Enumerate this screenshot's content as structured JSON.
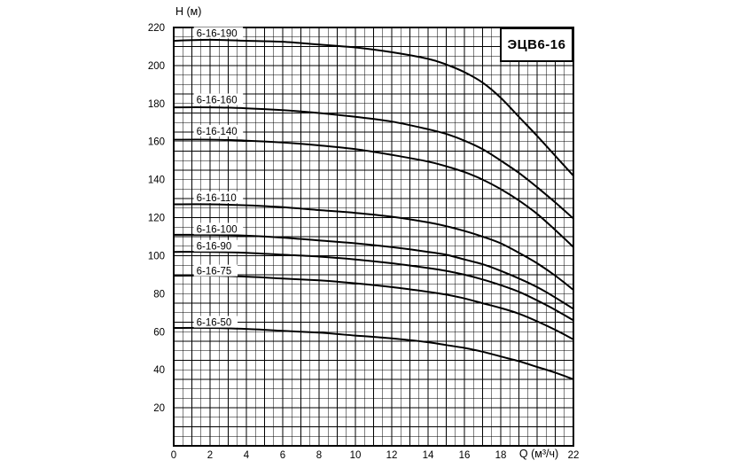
{
  "chart_data": {
    "type": "line",
    "title": "ЭЦВ6-16",
    "xlabel": "Q (м³/ч)",
    "ylabel": "H (м)",
    "xlim": [
      0,
      22
    ],
    "ylim": [
      0,
      220
    ],
    "x_ticks": [
      0,
      2,
      4,
      6,
      8,
      10,
      12,
      14,
      16,
      18,
      22
    ],
    "x_label_position": 20,
    "y_ticks": [
      20,
      40,
      60,
      80,
      100,
      120,
      140,
      160,
      180,
      200,
      220
    ],
    "grid": {
      "on": true,
      "x_minor_step": 0.5,
      "y_minor_step": 5
    },
    "legend_position": "labels-on-curves",
    "series": [
      {
        "name": "6-16-190",
        "label_x": 1.25,
        "label_y": 217,
        "points": [
          [
            0,
            213
          ],
          [
            2,
            213.5
          ],
          [
            4,
            213
          ],
          [
            6,
            212.5
          ],
          [
            8,
            211
          ],
          [
            10,
            209.5
          ],
          [
            12,
            207
          ],
          [
            14,
            203.5
          ],
          [
            15,
            200.5
          ],
          [
            16,
            196.5
          ],
          [
            17,
            191
          ],
          [
            18,
            183
          ],
          [
            19,
            173
          ],
          [
            20,
            163
          ],
          [
            21,
            152.5
          ],
          [
            22,
            142
          ]
        ]
      },
      {
        "name": "6-16-160",
        "label_x": 1.25,
        "label_y": 182,
        "points": [
          [
            0,
            178
          ],
          [
            2,
            178
          ],
          [
            4,
            177.5
          ],
          [
            6,
            176.5
          ],
          [
            8,
            175
          ],
          [
            10,
            173
          ],
          [
            12,
            170.5
          ],
          [
            14,
            166.5
          ],
          [
            15,
            164
          ],
          [
            16,
            160.5
          ],
          [
            17,
            156
          ],
          [
            18,
            150
          ],
          [
            19,
            143.5
          ],
          [
            20,
            136
          ],
          [
            21,
            128
          ],
          [
            22,
            119.5
          ]
        ]
      },
      {
        "name": "6-16-140",
        "label_x": 1.25,
        "label_y": 165.5,
        "points": [
          [
            0,
            161
          ],
          [
            2,
            161
          ],
          [
            4,
            160.5
          ],
          [
            6,
            159.5
          ],
          [
            8,
            158
          ],
          [
            10,
            156
          ],
          [
            12,
            153
          ],
          [
            14,
            149.5
          ],
          [
            15,
            147
          ],
          [
            16,
            144
          ],
          [
            17,
            140
          ],
          [
            18,
            135
          ],
          [
            19,
            129
          ],
          [
            20,
            122
          ],
          [
            21,
            113.5
          ],
          [
            22,
            104.5
          ]
        ]
      },
      {
        "name": "6-16-110",
        "label_x": 1.25,
        "label_y": 130.5,
        "points": [
          [
            0,
            127
          ],
          [
            2,
            127
          ],
          [
            4,
            126.5
          ],
          [
            6,
            125.5
          ],
          [
            8,
            124
          ],
          [
            10,
            122.5
          ],
          [
            12,
            120.5
          ],
          [
            14,
            117.5
          ],
          [
            15,
            115.5
          ],
          [
            16,
            113
          ],
          [
            17,
            110
          ],
          [
            18,
            106.5
          ],
          [
            19,
            101.5
          ],
          [
            20,
            96
          ],
          [
            21,
            89.5
          ],
          [
            22,
            82
          ]
        ]
      },
      {
        "name": "6-16-100",
        "label_x": 1.25,
        "label_y": 114,
        "points": [
          [
            0,
            111
          ],
          [
            2,
            111
          ],
          [
            4,
            110.5
          ],
          [
            6,
            109.5
          ],
          [
            8,
            108
          ],
          [
            10,
            106.5
          ],
          [
            12,
            104.5
          ],
          [
            14,
            102
          ],
          [
            15,
            100.5
          ],
          [
            16,
            98
          ],
          [
            17,
            95.5
          ],
          [
            18,
            92
          ],
          [
            19,
            88
          ],
          [
            20,
            83.5
          ],
          [
            21,
            78
          ],
          [
            22,
            72
          ]
        ]
      },
      {
        "name": "6-16-90",
        "label_x": 1.25,
        "label_y": 105,
        "points": [
          [
            0,
            102
          ],
          [
            2,
            102
          ],
          [
            4,
            101.5
          ],
          [
            6,
            100.5
          ],
          [
            8,
            99.5
          ],
          [
            10,
            98
          ],
          [
            12,
            96
          ],
          [
            14,
            93.5
          ],
          [
            15,
            92
          ],
          [
            16,
            90
          ],
          [
            17,
            87.5
          ],
          [
            18,
            84.5
          ],
          [
            19,
            81
          ],
          [
            20,
            76.5
          ],
          [
            21,
            71.5
          ],
          [
            22,
            66
          ]
        ]
      },
      {
        "name": "6-16-75",
        "label_x": 1.25,
        "label_y": 92,
        "points": [
          [
            0,
            89.5
          ],
          [
            2,
            89.5
          ],
          [
            4,
            89
          ],
          [
            6,
            88
          ],
          [
            8,
            87
          ],
          [
            10,
            85.5
          ],
          [
            12,
            83.5
          ],
          [
            14,
            81
          ],
          [
            15,
            79.5
          ],
          [
            16,
            77.5
          ],
          [
            17,
            75
          ],
          [
            18,
            72.5
          ],
          [
            19,
            69.5
          ],
          [
            20,
            65.5
          ],
          [
            21,
            61
          ],
          [
            22,
            56
          ]
        ]
      },
      {
        "name": "6-16-50",
        "label_x": 1.25,
        "label_y": 65,
        "points": [
          [
            0,
            62
          ],
          [
            2,
            62
          ],
          [
            4,
            61.5
          ],
          [
            6,
            60.5
          ],
          [
            8,
            59.5
          ],
          [
            10,
            58
          ],
          [
            12,
            56.5
          ],
          [
            14,
            54.5
          ],
          [
            15,
            53
          ],
          [
            16,
            51.5
          ],
          [
            17,
            49.5
          ],
          [
            18,
            47
          ],
          [
            19,
            44.5
          ],
          [
            20,
            41.5
          ],
          [
            21,
            38.5
          ],
          [
            22,
            35
          ]
        ]
      }
    ],
    "colors": {
      "curve": "#000000",
      "grid": "#000000",
      "background": "#ffffff"
    }
  }
}
